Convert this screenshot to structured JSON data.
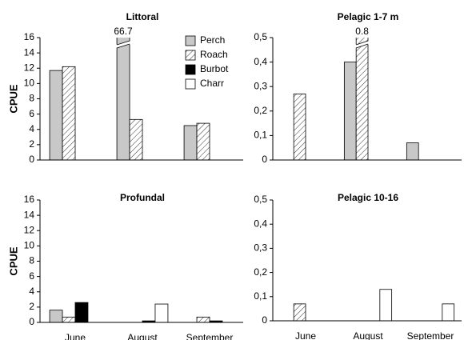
{
  "chart_data": [
    {
      "type": "bar",
      "title": "Littoral",
      "y_label": "CPUE",
      "categories": [
        null,
        null,
        null
      ],
      "ylim": [
        0,
        16
      ],
      "yticks": [
        0,
        2,
        4,
        6,
        8,
        10,
        12,
        14,
        16
      ],
      "legend": "upper right",
      "series": [
        {
          "name": "Perch",
          "color": "#c8c8c8",
          "values": [
            11.7,
            66.7,
            4.5
          ],
          "value_labels": [
            null,
            "66.7",
            null
          ]
        },
        {
          "name": "Roach",
          "color": "#ffffff",
          "hatch": true,
          "values": [
            12.2,
            5.3,
            4.8
          ]
        },
        {
          "name": "Burbot",
          "color": "#000000",
          "values": [
            null,
            null,
            null
          ]
        },
        {
          "name": "Charr",
          "color": "#ffffff",
          "values": [
            null,
            null,
            null
          ]
        }
      ]
    },
    {
      "type": "bar",
      "title": "Pelagic 1-7 m",
      "categories": [
        null,
        null,
        null
      ],
      "ylim": [
        0,
        0.5
      ],
      "yticks": [
        0,
        {
          "value": 0.1,
          "label": "0,1"
        },
        {
          "value": 0.2,
          "label": "0,2"
        },
        {
          "value": 0.3,
          "label": "0,3"
        },
        {
          "value": 0.4,
          "label": "0,4"
        },
        {
          "value": 0.5,
          "label": "0,5"
        }
      ],
      "series": [
        {
          "color": "#c8c8c8",
          "values": [
            null,
            0.4,
            0.07
          ]
        },
        {
          "color": "#ffffff",
          "hatch": true,
          "values": [
            0.27,
            0.8,
            null
          ],
          "value_labels": [
            null,
            "0.8",
            null
          ]
        },
        {
          "color": "#000000",
          "values": [
            null,
            null,
            null
          ]
        },
        {
          "color": "#ffffff",
          "values": [
            null,
            null,
            null
          ]
        }
      ]
    },
    {
      "type": "bar",
      "title": "Profundal",
      "y_label": "CPUE",
      "categories": [
        "June",
        "August",
        "September"
      ],
      "ylim": [
        0,
        16
      ],
      "yticks": [
        0,
        2,
        4,
        6,
        8,
        10,
        12,
        14,
        16
      ],
      "series": [
        {
          "color": "#c8c8c8",
          "values": [
            1.6,
            null,
            null
          ]
        },
        {
          "color": "#ffffff",
          "hatch": true,
          "values": [
            0.7,
            null,
            0.7
          ]
        },
        {
          "color": "#000000",
          "values": [
            2.6,
            0.2,
            0.2
          ]
        },
        {
          "color": "#ffffff",
          "values": [
            null,
            2.4,
            null
          ]
        }
      ]
    },
    {
      "type": "bar",
      "title": "Pelagic 10-16",
      "categories": [
        "June",
        "August",
        "September"
      ],
      "ylim": [
        0,
        0.5
      ],
      "yticks": [
        0,
        {
          "value": 0.1,
          "label": "0,1"
        },
        {
          "value": 0.2,
          "label": "0,2"
        },
        {
          "value": 0.3,
          "label": "0,3"
        },
        {
          "value": 0.4,
          "label": "0,4"
        },
        {
          "value": 0.5,
          "label": "0,5"
        }
      ],
      "series": [
        {
          "color": "#c8c8c8",
          "values": [
            null,
            null,
            null
          ]
        },
        {
          "color": "#ffffff",
          "hatch": true,
          "values": [
            0.07,
            null,
            null
          ]
        },
        {
          "color": "#000000",
          "values": [
            null,
            null,
            null
          ]
        },
        {
          "color": "#ffffff",
          "values": [
            null,
            0.13,
            0.07
          ]
        }
      ]
    }
  ]
}
